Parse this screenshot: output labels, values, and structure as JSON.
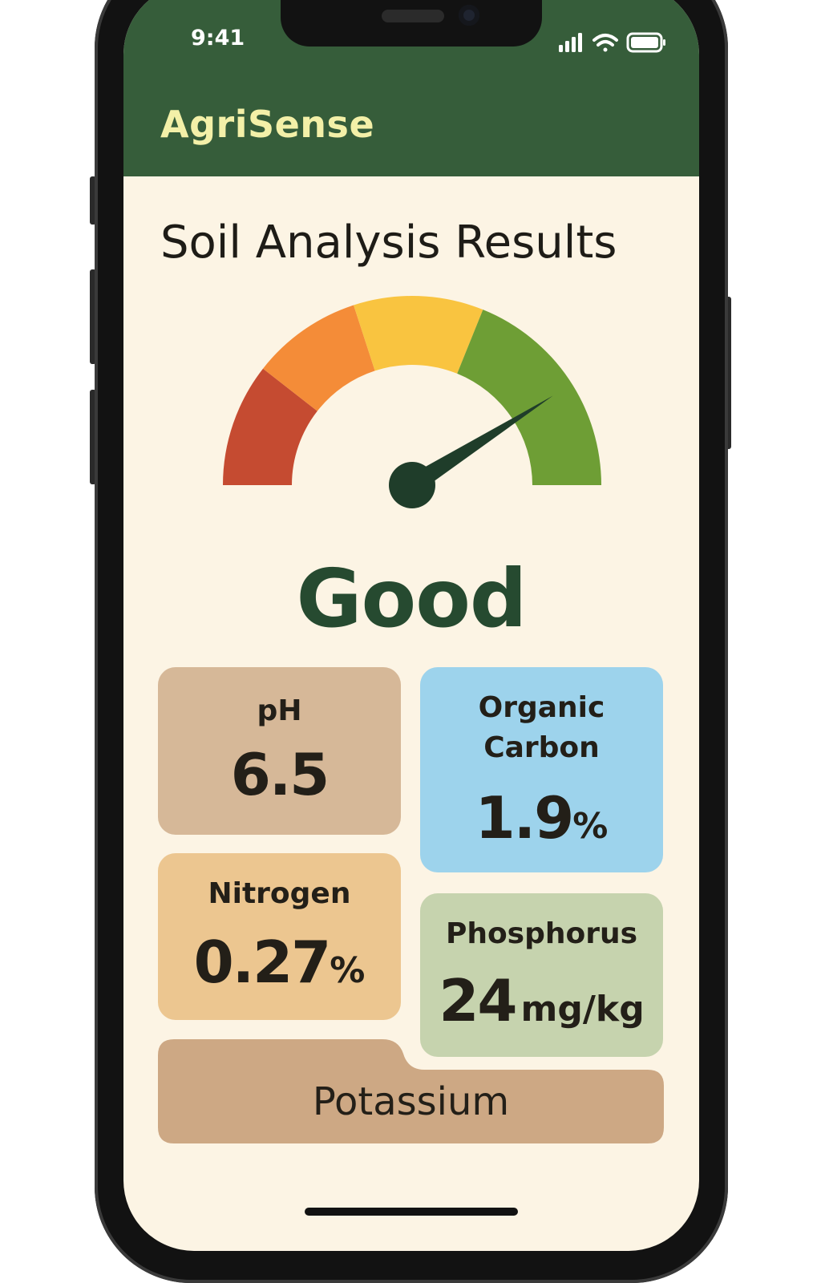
{
  "status_bar": {
    "time": "9:41",
    "signal_icon": "signal-bars-icon",
    "wifi_icon": "wifi-icon",
    "battery_icon": "battery-icon"
  },
  "header": {
    "app_title": "AgriSense"
  },
  "main": {
    "section_title": "Soil Analysis Results",
    "gauge": {
      "rating": "Good",
      "level": 0.82,
      "segment_colors": [
        "#c54b31",
        "#f48c38",
        "#f9c440",
        "#6e9e35"
      ],
      "needle_color": "#1f3d2a"
    },
    "metrics": {
      "ph": {
        "label": "pH",
        "value": "6.5"
      },
      "organic_carbon": {
        "label_line1": "Organic",
        "label_line2": "Carbon",
        "value": "1.9",
        "unit": "%"
      },
      "nitrogen": {
        "label": "Nitrogen",
        "value": "0.27",
        "unit": "%"
      },
      "phosphorus": {
        "label": "Phosphorus",
        "value": "24",
        "unit": "mg/kg"
      },
      "potassium": {
        "label": "Potassium"
      }
    }
  },
  "colors": {
    "header_bg": "#365d3a",
    "app_title": "#f3f0a8",
    "screen_bg": "#fcf4e4",
    "rating_text": "#264a30",
    "ph_card": "#d6b898",
    "organic_carbon_card": "#9dd3ec",
    "nitrogen_card": "#ecc690",
    "phosphorus_card": "#c6d3ae",
    "potassium_card": "#cda884"
  }
}
